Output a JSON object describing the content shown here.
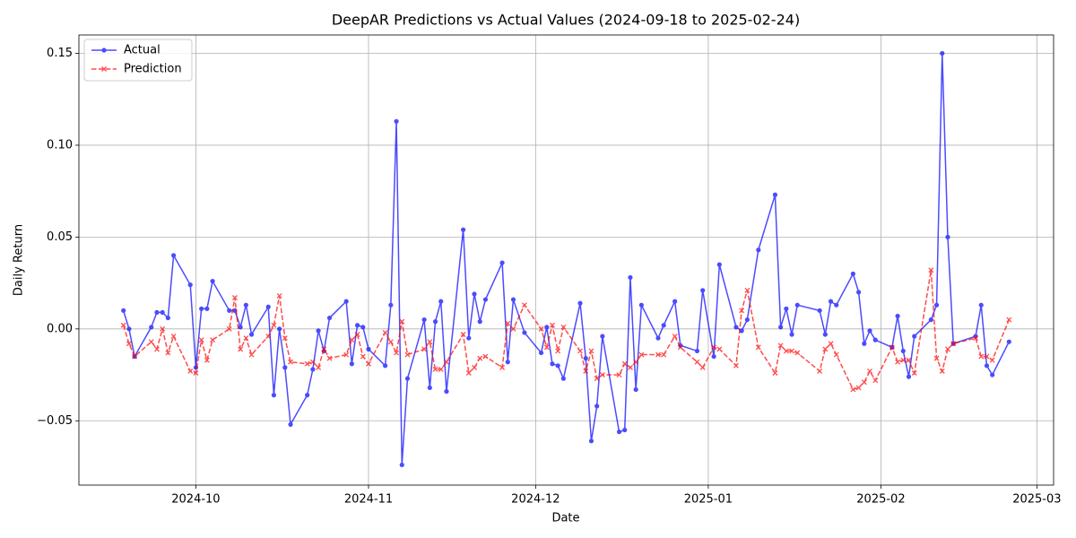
{
  "chart_data": {
    "type": "line",
    "title": "DeepAR Predictions vs Actual Values (2024-09-18 to 2025-02-24)",
    "xlabel": "Date",
    "ylabel": "Daily Return",
    "x": [
      "2024-09-18",
      "2024-09-19",
      "2024-09-20",
      "2024-09-23",
      "2024-09-24",
      "2024-09-25",
      "2024-09-26",
      "2024-09-27",
      "2024-09-30",
      "2024-10-01",
      "2024-10-02",
      "2024-10-03",
      "2024-10-04",
      "2024-10-07",
      "2024-10-08",
      "2024-10-09",
      "2024-10-10",
      "2024-10-11",
      "2024-10-14",
      "2024-10-15",
      "2024-10-16",
      "2024-10-17",
      "2024-10-18",
      "2024-10-21",
      "2024-10-22",
      "2024-10-23",
      "2024-10-24",
      "2024-10-25",
      "2024-10-28",
      "2024-10-29",
      "2024-10-30",
      "2024-10-31",
      "2024-11-01",
      "2024-11-04",
      "2024-11-05",
      "2024-11-06",
      "2024-11-07",
      "2024-11-08",
      "2024-11-11",
      "2024-11-12",
      "2024-11-13",
      "2024-11-14",
      "2024-11-15",
      "2024-11-18",
      "2024-11-19",
      "2024-11-20",
      "2024-11-21",
      "2024-11-22",
      "2024-11-25",
      "2024-11-26",
      "2024-11-27",
      "2024-11-29",
      "2024-12-02",
      "2024-12-03",
      "2024-12-04",
      "2024-12-05",
      "2024-12-06",
      "2024-12-09",
      "2024-12-10",
      "2024-12-11",
      "2024-12-12",
      "2024-12-13",
      "2024-12-16",
      "2024-12-17",
      "2024-12-18",
      "2024-12-19",
      "2024-12-20",
      "2024-12-23",
      "2024-12-24",
      "2024-12-26",
      "2024-12-27",
      "2024-12-30",
      "2024-12-31",
      "2025-01-02",
      "2025-01-03",
      "2025-01-06",
      "2025-01-07",
      "2025-01-08",
      "2025-01-10",
      "2025-01-13",
      "2025-01-14",
      "2025-01-15",
      "2025-01-16",
      "2025-01-17",
      "2025-01-21",
      "2025-01-22",
      "2025-01-23",
      "2025-01-24",
      "2025-01-27",
      "2025-01-28",
      "2025-01-29",
      "2025-01-30",
      "2025-01-31",
      "2025-02-03",
      "2025-02-04",
      "2025-02-05",
      "2025-02-06",
      "2025-02-07",
      "2025-02-10",
      "2025-02-11",
      "2025-02-12",
      "2025-02-13",
      "2025-02-14",
      "2025-02-18",
      "2025-02-19",
      "2025-02-20",
      "2025-02-21",
      "2025-02-24"
    ],
    "series": [
      {
        "name": "Actual",
        "color": "#0000ff",
        "linestyle": "solid",
        "marker": "o",
        "values": [
          0.01,
          0.0,
          -0.015,
          0.001,
          0.009,
          0.009,
          0.006,
          0.04,
          0.024,
          -0.021,
          0.011,
          0.011,
          0.026,
          0.01,
          0.01,
          0.001,
          0.013,
          -0.003,
          0.012,
          -0.036,
          0.0,
          -0.021,
          -0.052,
          -0.036,
          -0.022,
          -0.001,
          -0.012,
          0.006,
          0.015,
          -0.019,
          0.002,
          0.001,
          -0.011,
          -0.02,
          0.013,
          0.113,
          -0.074,
          -0.027,
          0.005,
          -0.032,
          0.004,
          0.015,
          -0.034,
          0.054,
          -0.005,
          0.019,
          0.004,
          0.016,
          0.036,
          -0.018,
          0.016,
          -0.002,
          -0.013,
          0.001,
          -0.019,
          -0.02,
          -0.027,
          0.014,
          -0.016,
          -0.061,
          -0.042,
          -0.004,
          -0.056,
          -0.055,
          0.028,
          -0.033,
          0.013,
          -0.005,
          0.002,
          0.015,
          -0.009,
          -0.012,
          0.021,
          -0.015,
          0.035,
          0.001,
          -0.001,
          0.005,
          0.043,
          0.073,
          0.001,
          0.011,
          -0.003,
          0.013,
          0.01,
          -0.003,
          0.015,
          0.013,
          0.03,
          0.02,
          -0.008,
          -0.001,
          -0.006,
          -0.01,
          0.007,
          -0.012,
          -0.026,
          -0.004,
          0.005,
          0.013,
          0.15,
          0.05,
          -0.008,
          -0.004,
          0.013,
          -0.02,
          -0.025,
          -0.007
        ]
      },
      {
        "name": "Prediction",
        "color": "#ff0000",
        "linestyle": "dashed",
        "marker": "x",
        "values": [
          0.002,
          -0.008,
          -0.015,
          -0.007,
          -0.011,
          0.0,
          -0.013,
          -0.004,
          -0.023,
          -0.024,
          -0.006,
          -0.017,
          -0.006,
          0.0,
          0.017,
          -0.011,
          -0.005,
          -0.014,
          -0.004,
          0.002,
          0.018,
          -0.005,
          -0.018,
          -0.019,
          -0.018,
          -0.021,
          -0.011,
          -0.016,
          -0.014,
          -0.006,
          -0.003,
          -0.015,
          -0.019,
          -0.002,
          -0.007,
          -0.013,
          0.004,
          -0.014,
          -0.011,
          -0.007,
          -0.022,
          -0.022,
          -0.018,
          -0.003,
          -0.024,
          -0.021,
          -0.016,
          -0.015,
          -0.021,
          0.003,
          0.0,
          0.013,
          0.0,
          -0.01,
          0.002,
          -0.012,
          0.001,
          -0.012,
          -0.023,
          -0.012,
          -0.027,
          -0.025,
          -0.025,
          -0.019,
          -0.021,
          -0.018,
          -0.014,
          -0.014,
          -0.014,
          -0.004,
          -0.01,
          -0.018,
          -0.021,
          -0.01,
          -0.011,
          -0.02,
          0.01,
          0.021,
          -0.01,
          -0.024,
          -0.009,
          -0.012,
          -0.012,
          -0.013,
          -0.023,
          -0.011,
          -0.008,
          -0.014,
          -0.033,
          -0.032,
          -0.029,
          -0.023,
          -0.028,
          -0.01,
          -0.018,
          -0.017,
          -0.017,
          -0.024,
          0.032,
          -0.016,
          -0.023,
          -0.011,
          -0.008,
          -0.005,
          -0.015,
          -0.015,
          -0.017,
          0.005
        ]
      }
    ],
    "xlim": [
      "2024-09-10",
      "2025-03-04"
    ],
    "xticks": [
      {
        "value": "2024-10-01",
        "label": "2024-10"
      },
      {
        "value": "2024-11-01",
        "label": "2024-11"
      },
      {
        "value": "2024-12-01",
        "label": "2024-12"
      },
      {
        "value": "2025-01-01",
        "label": "2025-01"
      },
      {
        "value": "2025-02-01",
        "label": "2025-02"
      },
      {
        "value": "2025-03-01",
        "label": "2025-03"
      }
    ],
    "ylim": [
      -0.085,
      0.16
    ],
    "yticks": [
      {
        "value": -0.05,
        "label": "−0.05"
      },
      {
        "value": 0,
        "label": "0.00"
      },
      {
        "value": 0.05,
        "label": "0.05"
      },
      {
        "value": 0.1,
        "label": "0.10"
      },
      0.15
    ],
    "grid": true,
    "legend": "upper left"
  }
}
